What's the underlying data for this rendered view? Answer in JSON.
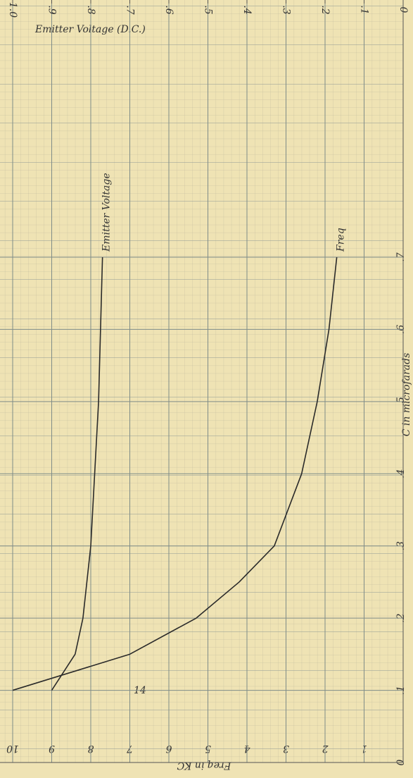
{
  "chart_data": {
    "type": "line",
    "title": "Emitter Voltage (D.C.)",
    "x_label": "C in microfarads",
    "y_label": "Freq in KC",
    "page_number": "14",
    "x": [
      0.1,
      0.15,
      0.2,
      0.25,
      0.3,
      0.4,
      0.5,
      0.6,
      0.7
    ],
    "series": [
      {
        "name": "Freq",
        "color": "#2a2a2a",
        "values": [
          10,
          7,
          5.3,
          4.2,
          3.3,
          2.6,
          2.2,
          1.9,
          1.7
        ]
      },
      {
        "name": "Emitter Voltage",
        "color": "#2a2a2a",
        "axis": "y2",
        "values": [
          0.9,
          0.84,
          0.82,
          0.81,
          0.8,
          0.79,
          0.78,
          0.775,
          0.77
        ]
      }
    ],
    "xlim": [
      0,
      0.7
    ],
    "xticks": [
      0,
      {
        "value": 0.1,
        "label": ".1"
      },
      {
        "value": 0.2,
        "label": ".2"
      },
      {
        "value": 0.3,
        "label": ".3"
      },
      {
        "value": 0.4,
        "label": ".4"
      },
      {
        "value": 0.5,
        "label": ".5"
      },
      {
        "value": 0.6,
        "label": ".6"
      },
      {
        "value": 0.7,
        "label": ".7"
      }
    ],
    "ylim": [
      0,
      10
    ],
    "yticks": [
      1,
      2,
      3,
      4,
      5,
      6,
      7,
      8,
      9,
      10
    ],
    "y2lim": [
      0,
      1.0
    ],
    "y2ticks": [
      0,
      {
        "value": 0.1,
        "label": ".1"
      },
      {
        "value": 0.2,
        "label": ".2"
      },
      {
        "value": 0.3,
        "label": ".3"
      },
      {
        "value": 0.4,
        "label": ".4"
      },
      {
        "value": 0.5,
        "label": ".5"
      },
      {
        "value": 0.6,
        "label": ".6"
      },
      {
        "value": 0.7,
        "label": ".7"
      },
      {
        "value": 0.8,
        "label": ".8"
      },
      {
        "value": 0.9,
        "label": ".9"
      },
      {
        "value": 1.0,
        "label": "1.0"
      }
    ],
    "grid": true
  }
}
